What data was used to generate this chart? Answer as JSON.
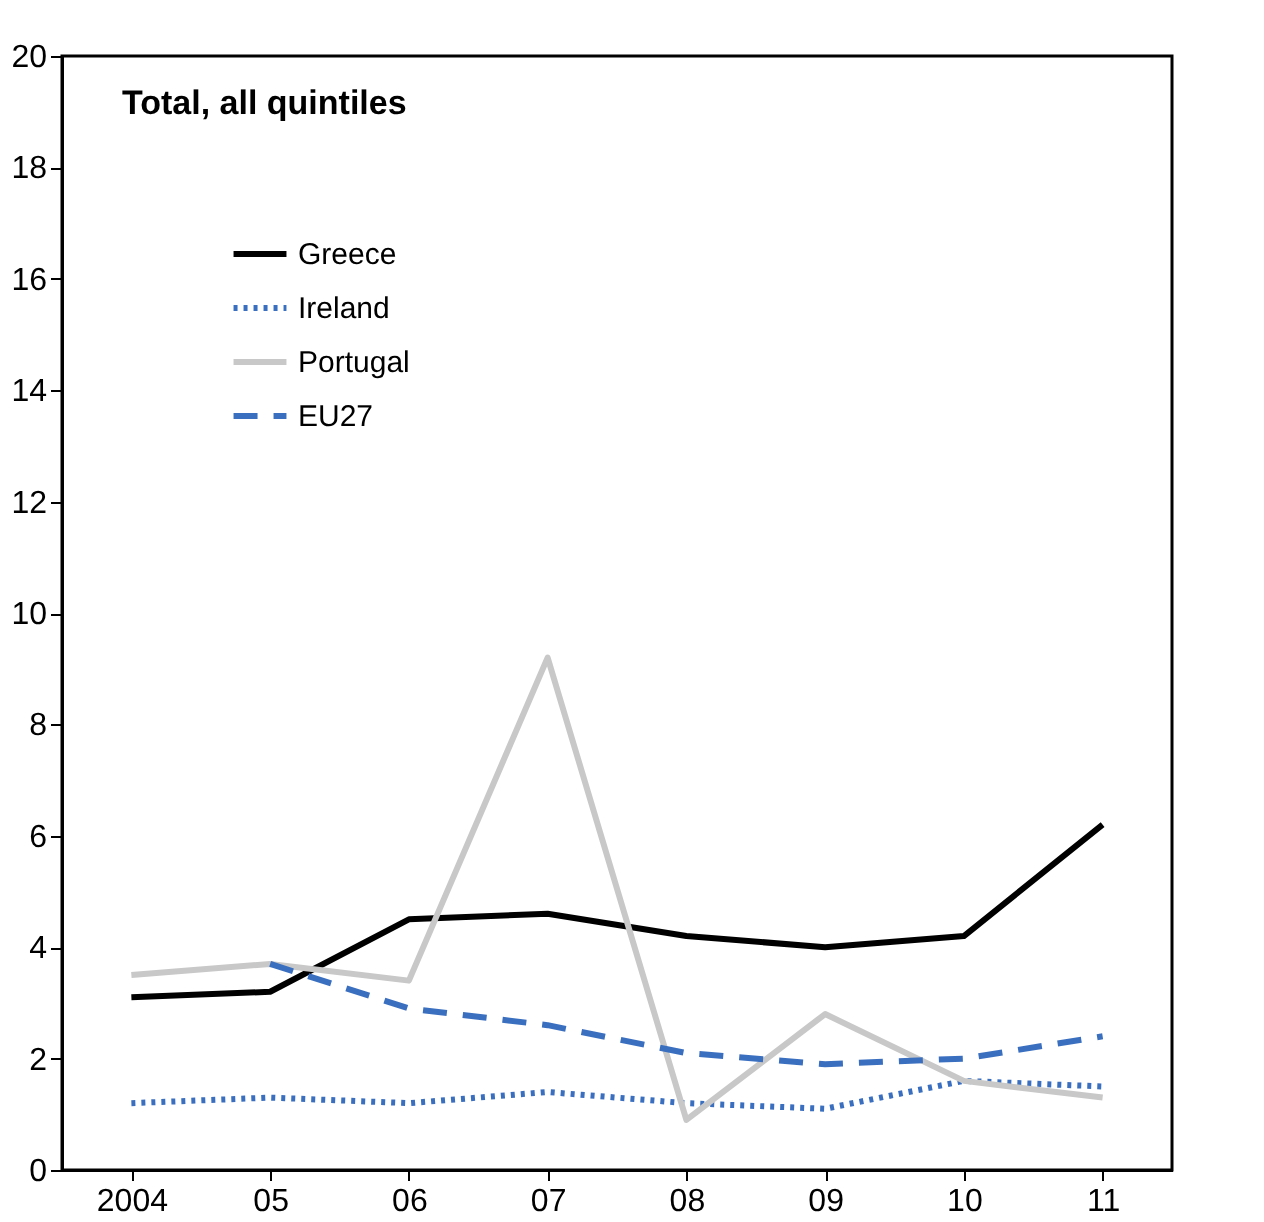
{
  "chart_data": {
    "type": "line",
    "title": "Total, all quintiles",
    "categories": [
      "2004",
      "05",
      "06",
      "07",
      "08",
      "09",
      "10",
      "11"
    ],
    "ylim": [
      0,
      20
    ],
    "yticks": [
      0,
      2,
      4,
      6,
      8,
      10,
      12,
      14,
      16,
      18,
      20
    ],
    "grid": false,
    "legend": "top left",
    "marker": "none",
    "series": [
      {
        "name": "Greece",
        "color": "#000000",
        "line_style": "solid",
        "values": [
          3.1,
          3.2,
          4.5,
          4.6,
          4.2,
          4.0,
          4.2,
          6.2
        ]
      },
      {
        "name": "Ireland",
        "color": "#3a6fc0",
        "line_style": "dotted",
        "values": [
          1.2,
          1.3,
          1.2,
          1.4,
          1.2,
          1.1,
          1.6,
          1.5
        ]
      },
      {
        "name": "Portugal",
        "color": "#c8c8c8",
        "line_style": "solid",
        "values": [
          3.5,
          3.7,
          3.4,
          9.2,
          0.9,
          2.8,
          1.6,
          1.3
        ]
      },
      {
        "name": "EU27",
        "color": "#3a6fc0",
        "line_style": "dashed",
        "values": [
          null,
          3.7,
          2.9,
          2.6,
          2.1,
          1.9,
          2.0,
          2.4
        ]
      }
    ]
  }
}
